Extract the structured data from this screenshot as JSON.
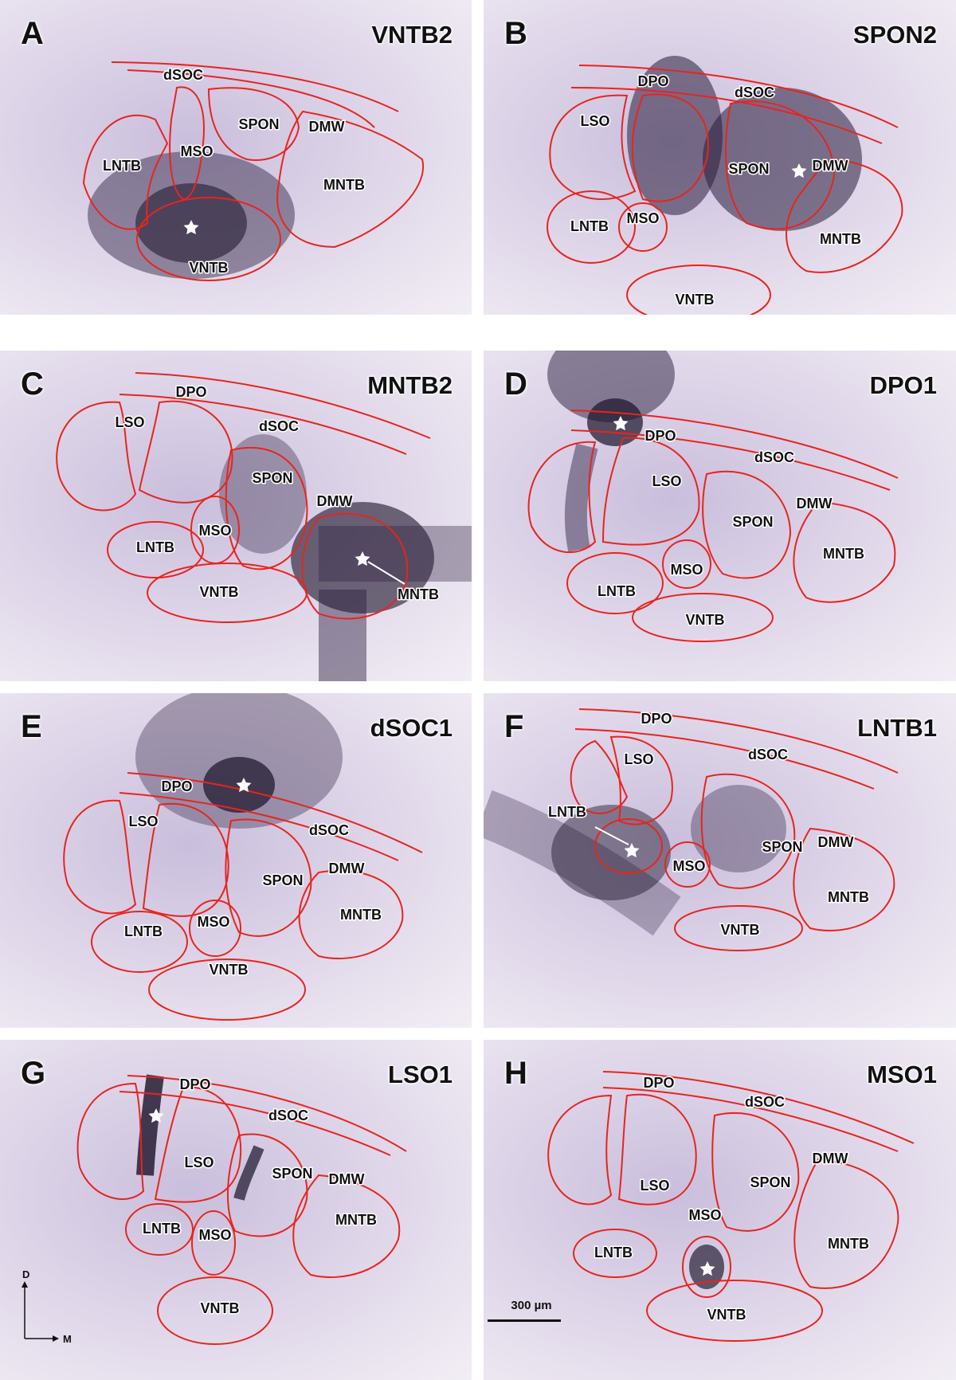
{
  "colors": {
    "outline": "#e8241f",
    "stain_dark": "#2a1d3d",
    "tissue": "#ddd4e8",
    "label_halo": "#ffffff"
  },
  "panels": [
    {
      "letter": "A",
      "title": "VNTB2",
      "regions": [
        "dSOC",
        "SPON",
        "DMW",
        "MSO",
        "LNTB",
        "MNTB",
        "VNTB"
      ]
    },
    {
      "letter": "B",
      "title": "SPON2",
      "regions": [
        "DPO",
        "dSOC",
        "LSO",
        "SPON",
        "DMW",
        "LNTB",
        "MSO",
        "MNTB",
        "VNTB"
      ]
    },
    {
      "letter": "C",
      "title": "MNTB2",
      "regions": [
        "DPO",
        "LSO",
        "dSOC",
        "SPON",
        "DMW",
        "MSO",
        "LNTB",
        "VNTB",
        "MNTB"
      ]
    },
    {
      "letter": "D",
      "title": "DPO1",
      "regions": [
        "DPO",
        "dSOC",
        "LSO",
        "DMW",
        "SPON",
        "MNTB",
        "MSO",
        "LNTB",
        "VNTB"
      ]
    },
    {
      "letter": "E",
      "title": "dSOC1",
      "regions": [
        "DPO",
        "LSO",
        "dSOC",
        "DMW",
        "SPON",
        "MNTB",
        "MSO",
        "LNTB",
        "VNTB"
      ]
    },
    {
      "letter": "F",
      "title": "LNTB1",
      "regions": [
        "DPO",
        "LSO",
        "dSOC",
        "LNTB",
        "SPON",
        "DMW",
        "MSO",
        "MNTB",
        "VNTB"
      ]
    },
    {
      "letter": "G",
      "title": "LSO1",
      "regions": [
        "DPO",
        "dSOC",
        "LSO",
        "SPON",
        "DMW",
        "MNTB",
        "LNTB",
        "MSO",
        "VNTB"
      ]
    },
    {
      "letter": "H",
      "title": "MSO1",
      "regions": [
        "DPO",
        "dSOC",
        "LSO",
        "DMW",
        "SPON",
        "MSO",
        "LNTB",
        "MNTB",
        "VNTB"
      ]
    }
  ],
  "orientation": {
    "dorsal": "D",
    "medial": "M"
  },
  "scale_bar": {
    "label": "300 µm"
  }
}
